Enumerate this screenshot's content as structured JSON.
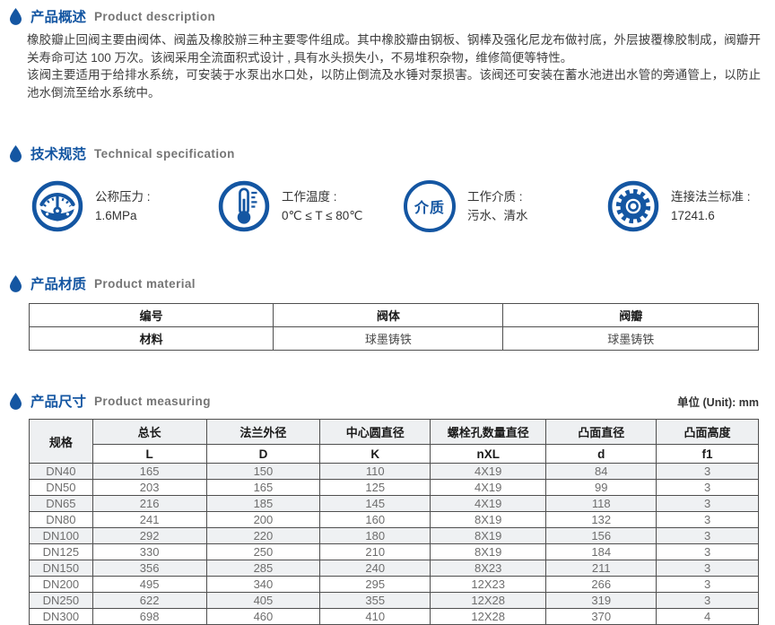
{
  "colors": {
    "accent_blue": "#1456a2",
    "heading_en_gray": "#757575",
    "table_border": "#4f4f4f",
    "header_row_bg": "#eef0f2",
    "alt_row_bg": "#eff1f3"
  },
  "sections": {
    "overview": {
      "title_zh": "产品概述",
      "title_en": "Product description",
      "paragraphs": [
        "橡胶瓣止回阀主要由阀体、阀盖及橡胶辦三种主要零件组成。其中橡胶瓣由钢板、钢棒及强化尼龙布做衬底，外层披覆橡胶制成，阀瓣开关寿命可达 100 万次。该阀采用全流面积式设计 , 具有水头损失小，不易堆积杂物，维修简便等特性。",
        "该阀主要适用于给排水系统，可安装于水泵出水口处，以防止倒流及水锤对泵损害。该阀还可安装在蓄水池进出水管的旁通管上，以防止池水倒流至给水系统中。"
      ]
    },
    "specification": {
      "title_zh": "技术规范",
      "title_en": "Technical specification",
      "items": [
        {
          "icon": "pressure-gauge-icon",
          "label": "公称压力 :",
          "value": "1.6MPa"
        },
        {
          "icon": "thermometer-icon",
          "label": "工作温度 :",
          "value": "0℃ ≤ T ≤ 80℃"
        },
        {
          "icon": "medium-icon",
          "icon_text": "介质",
          "label": "工作介质 :",
          "value": "污水、清水"
        },
        {
          "icon": "flange-icon",
          "label": "连接法兰标准 :",
          "value": "17241.6"
        }
      ]
    },
    "material": {
      "title_zh": "产品材质",
      "title_en": "Product material",
      "table": {
        "rows": [
          [
            "编号",
            "阀体",
            "阀瓣"
          ],
          [
            "材料",
            "球墨铸铁",
            "球墨铸铁"
          ]
        ]
      }
    },
    "measuring": {
      "title_zh": "产品尺寸",
      "title_en": "Product measuring",
      "unit": "单位 (Unit): mm",
      "table": {
        "header_row1": [
          "规格",
          "总长",
          "法兰外径",
          "中心圆直径",
          "螺栓孔数量直径",
          "凸面直径",
          "凸面高度"
        ],
        "header_row2": [
          "L",
          "D",
          "K",
          "nXL",
          "d",
          "f1"
        ],
        "rows": [
          [
            "DN40",
            "165",
            "150",
            "110",
            "4X19",
            "84",
            "3"
          ],
          [
            "DN50",
            "203",
            "165",
            "125",
            "4X19",
            "99",
            "3"
          ],
          [
            "DN65",
            "216",
            "185",
            "145",
            "4X19",
            "118",
            "3"
          ],
          [
            "DN80",
            "241",
            "200",
            "160",
            "8X19",
            "132",
            "3"
          ],
          [
            "DN100",
            "292",
            "220",
            "180",
            "8X19",
            "156",
            "3"
          ],
          [
            "DN125",
            "330",
            "250",
            "210",
            "8X19",
            "184",
            "3"
          ],
          [
            "DN150",
            "356",
            "285",
            "240",
            "8X23",
            "211",
            "3"
          ],
          [
            "DN200",
            "495",
            "340",
            "295",
            "12X23",
            "266",
            "3"
          ],
          [
            "DN250",
            "622",
            "405",
            "355",
            "12X28",
            "319",
            "3"
          ],
          [
            "DN300",
            "698",
            "460",
            "410",
            "12X28",
            "370",
            "4"
          ]
        ]
      }
    }
  }
}
